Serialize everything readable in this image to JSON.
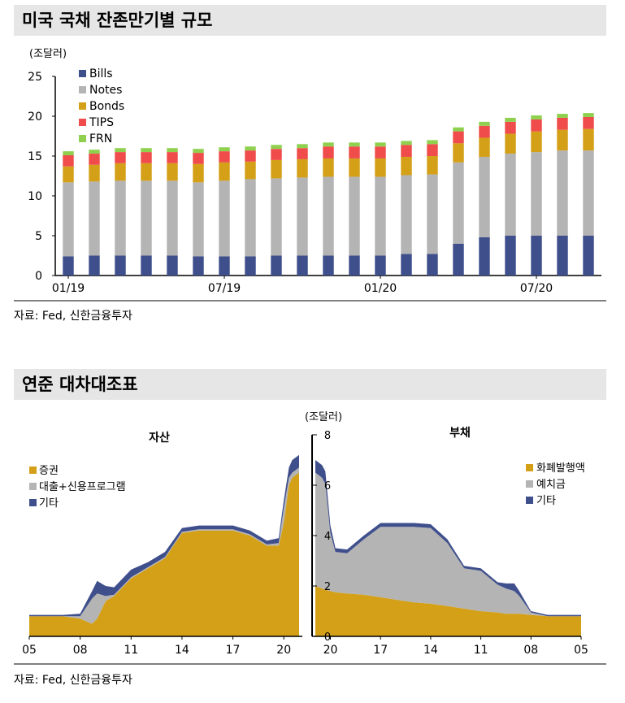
{
  "chart1": {
    "title": "미국 국채 잔존만기별 규모",
    "unit": "(조달러)",
    "source": "자료: Fed, 신한금융투자",
    "chart_data": {
      "type": "bar",
      "stacked": true,
      "title": "미국 국채 잔존만기별 규모",
      "ylabel": "(조달러)",
      "ylim": [
        0,
        25
      ],
      "yticks": [
        "0",
        "5",
        "10",
        "15",
        "20",
        "25"
      ],
      "categories": [
        "01/19",
        "02/19",
        "03/19",
        "04/19",
        "05/19",
        "06/19",
        "07/19",
        "08/19",
        "09/19",
        "10/19",
        "11/19",
        "12/19",
        "01/20",
        "02/20",
        "03/20",
        "04/20",
        "05/20",
        "06/20",
        "07/20",
        "08/20",
        "09/20"
      ],
      "xtick_labels": [
        {
          "index": 0,
          "label": "01/19"
        },
        {
          "index": 6,
          "label": "07/19"
        },
        {
          "index": 12,
          "label": "01/20"
        },
        {
          "index": 18,
          "label": "07/20"
        }
      ],
      "legend_position": "top-left",
      "series": [
        {
          "name": "Bills",
          "color": "#3f4f8c",
          "values": [
            2.4,
            2.5,
            2.5,
            2.5,
            2.5,
            2.4,
            2.4,
            2.4,
            2.5,
            2.5,
            2.5,
            2.5,
            2.5,
            2.7,
            2.7,
            4.0,
            4.8,
            5.0,
            5.0,
            5.0,
            5.0
          ]
        },
        {
          "name": "Notes",
          "color": "#b4b4b4",
          "values": [
            9.3,
            9.3,
            9.4,
            9.4,
            9.4,
            9.3,
            9.5,
            9.7,
            9.7,
            9.8,
            9.9,
            9.9,
            9.9,
            9.9,
            10.0,
            10.2,
            10.1,
            10.3,
            10.5,
            10.7,
            10.7
          ]
        },
        {
          "name": "Bonds",
          "color": "#d4a017",
          "values": [
            2.0,
            2.1,
            2.2,
            2.2,
            2.2,
            2.3,
            2.3,
            2.2,
            2.3,
            2.3,
            2.3,
            2.3,
            2.3,
            2.3,
            2.3,
            2.4,
            2.4,
            2.5,
            2.6,
            2.6,
            2.7
          ]
        },
        {
          "name": "TIPS",
          "color": "#f04c4c",
          "values": [
            1.4,
            1.4,
            1.4,
            1.4,
            1.4,
            1.4,
            1.4,
            1.4,
            1.4,
            1.4,
            1.5,
            1.5,
            1.5,
            1.5,
            1.5,
            1.5,
            1.5,
            1.5,
            1.5,
            1.5,
            1.5
          ]
        },
        {
          "name": "FRN",
          "color": "#8fd14f",
          "values": [
            0.5,
            0.5,
            0.5,
            0.5,
            0.5,
            0.5,
            0.5,
            0.5,
            0.5,
            0.5,
            0.5,
            0.5,
            0.5,
            0.5,
            0.5,
            0.5,
            0.5,
            0.5,
            0.5,
            0.5,
            0.5
          ]
        }
      ]
    }
  },
  "chart2": {
    "title": "연준 대차대조표",
    "unit": "(조달러)",
    "assets_label": "자산",
    "liabilities_label": "부채",
    "source": "자료: Fed, 신한금융투자",
    "chart_data": {
      "type": "area",
      "title": "연준 대차대조표",
      "ylabel": "(조달러)",
      "ylim": [
        0,
        8
      ],
      "yticks": [
        "0",
        "2",
        "4",
        "6",
        "8"
      ],
      "x": [
        2005,
        2006,
        2007,
        2008,
        2008.7,
        2009,
        2009.5,
        2010,
        2011,
        2012,
        2013,
        2014,
        2015,
        2016,
        2017,
        2018,
        2019,
        2019.7,
        2020,
        2020.3,
        2020.5,
        2020.9
      ],
      "assets_xticks": [
        "05",
        "08",
        "11",
        "14",
        "17",
        "20"
      ],
      "liabilities_xticks": [
        "20",
        "17",
        "14",
        "11",
        "08",
        "05"
      ],
      "assets": {
        "legend_position": "top-left",
        "series": [
          {
            "name": "증권",
            "color": "#d4a017",
            "values": [
              0.8,
              0.8,
              0.8,
              0.7,
              0.5,
              0.7,
              1.4,
              1.6,
              2.3,
              2.7,
              3.1,
              4.1,
              4.2,
              4.2,
              4.2,
              4.0,
              3.6,
              3.6,
              4.5,
              6.0,
              6.3,
              6.5
            ]
          },
          {
            "name": "대출+신용프로그램",
            "color": "#b4b4b4",
            "values": [
              0.0,
              0.0,
              0.0,
              0.1,
              1.0,
              1.0,
              0.2,
              0.05,
              0.05,
              0.05,
              0.05,
              0.05,
              0.05,
              0.05,
              0.05,
              0.05,
              0.05,
              0.1,
              0.6,
              0.3,
              0.2,
              0.2
            ]
          },
          {
            "name": "기타",
            "color": "#3f4f8c",
            "values": [
              0.05,
              0.05,
              0.05,
              0.1,
              0.3,
              0.5,
              0.4,
              0.3,
              0.3,
              0.2,
              0.2,
              0.15,
              0.15,
              0.15,
              0.15,
              0.15,
              0.15,
              0.2,
              0.3,
              0.4,
              0.5,
              0.5
            ]
          }
        ]
      },
      "liabilities": {
        "legend_position": "top-right",
        "series": [
          {
            "name": "화폐발행액",
            "color": "#d4a017",
            "values": [
              0.8,
              0.8,
              0.8,
              0.85,
              0.9,
              0.9,
              0.9,
              0.95,
              1.0,
              1.1,
              1.2,
              1.3,
              1.35,
              1.45,
              1.55,
              1.65,
              1.7,
              1.75,
              1.8,
              1.85,
              1.9,
              2.0
            ]
          },
          {
            "name": "예치금",
            "color": "#b4b4b4",
            "values": [
              0.0,
              0.0,
              0.0,
              0.1,
              0.7,
              0.9,
              1.0,
              1.1,
              1.6,
              1.6,
              2.5,
              3.0,
              3.0,
              2.9,
              2.8,
              2.2,
              1.6,
              1.6,
              2.3,
              4.2,
              4.4,
              4.5
            ]
          },
          {
            "name": "기타",
            "color": "#3f4f8c",
            "values": [
              0.05,
              0.05,
              0.05,
              0.05,
              0.2,
              0.3,
              0.2,
              0.1,
              0.1,
              0.1,
              0.15,
              0.15,
              0.15,
              0.15,
              0.15,
              0.15,
              0.15,
              0.15,
              0.3,
              0.5,
              0.5,
              0.5
            ]
          }
        ]
      }
    }
  }
}
